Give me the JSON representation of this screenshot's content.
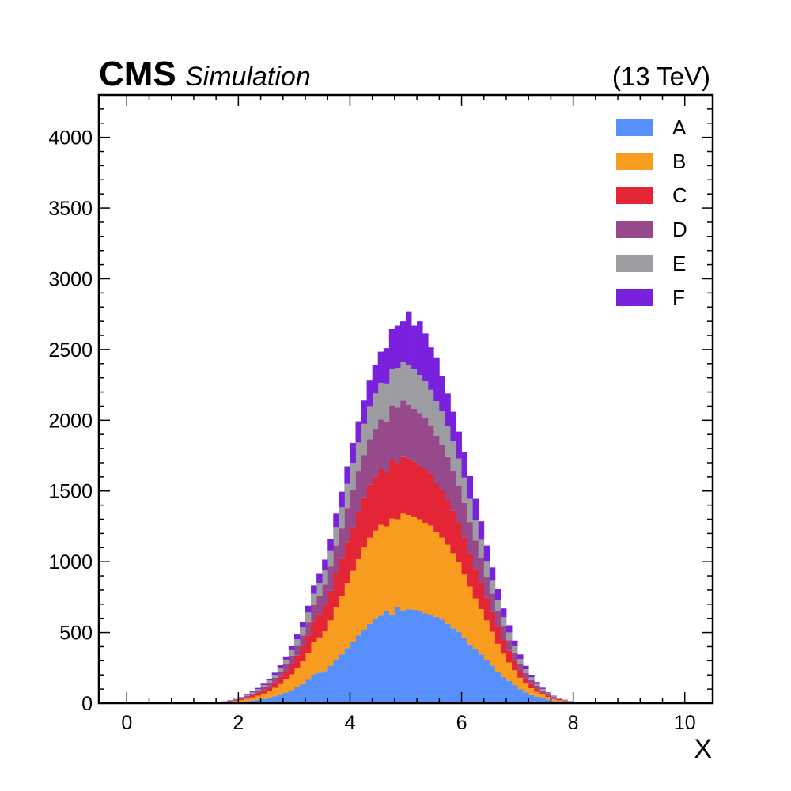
{
  "header": {
    "experiment": "CMS",
    "status": "Simulation",
    "energy": "(13 TeV)"
  },
  "chart_data": {
    "type": "bar",
    "stacked": true,
    "histogram": true,
    "xlabel": "X",
    "ylabel": "",
    "xlim": [
      -0.5,
      10.5
    ],
    "ylim": [
      0,
      4300
    ],
    "xticks": [
      0,
      2,
      4,
      6,
      8,
      10
    ],
    "yticks": [
      0,
      500,
      1000,
      1500,
      2000,
      2500,
      3000,
      3500,
      4000
    ],
    "bin_width": 0.1,
    "legend_position": "top-right",
    "bins_x_start": [
      1.6,
      1.7,
      1.8,
      1.9,
      2.0,
      2.1,
      2.2,
      2.3,
      2.4,
      2.5,
      2.6,
      2.7,
      2.8,
      2.9,
      3.0,
      3.1,
      3.2,
      3.3,
      3.4,
      3.5,
      3.6,
      3.7,
      3.8,
      3.9,
      4.0,
      4.1,
      4.2,
      4.3,
      4.4,
      4.5,
      4.6,
      4.7,
      4.8,
      4.9,
      5.0,
      5.1,
      5.2,
      5.3,
      5.4,
      5.5,
      5.6,
      5.7,
      5.8,
      5.9,
      6.0,
      6.1,
      6.2,
      6.3,
      6.4,
      6.5,
      6.6,
      6.7,
      6.8,
      6.9,
      7.0,
      7.1,
      7.2,
      7.3,
      7.4,
      7.5,
      7.6,
      7.7,
      7.8,
      7.9,
      8.0,
      8.1,
      8.2,
      8.3,
      8.4
    ],
    "series": [
      {
        "name": "A",
        "color": "#5790fc",
        "values": [
          2,
          3,
          5,
          7,
          10,
          14,
          18,
          23,
          30,
          38,
          48,
          60,
          75,
          92,
          112,
          135,
          165,
          205,
          215,
          228,
          265,
          310,
          345,
          390,
          435,
          478,
          520,
          560,
          600,
          620,
          650,
          625,
          680,
          650,
          665,
          660,
          650,
          635,
          625,
          610,
          590,
          560,
          530,
          505,
          460,
          415,
          380,
          345,
          305,
          265,
          220,
          185,
          158,
          128,
          100,
          76,
          58,
          45,
          34,
          24,
          16,
          11,
          8,
          5,
          3,
          2,
          1,
          1,
          0
        ]
      },
      {
        "name": "B",
        "color": "#f89c20",
        "values": [
          3,
          4,
          6,
          9,
          12,
          17,
          23,
          30,
          38,
          48,
          60,
          75,
          92,
          112,
          135,
          160,
          190,
          225,
          250,
          280,
          320,
          370,
          410,
          460,
          500,
          540,
          580,
          610,
          620,
          640,
          600,
          680,
          620,
          690,
          665,
          660,
          650,
          640,
          630,
          600,
          580,
          560,
          530,
          490,
          450,
          410,
          360,
          320,
          280,
          240,
          200,
          165,
          130,
          105,
          80,
          62,
          48,
          36,
          27,
          19,
          13,
          9,
          6,
          4,
          2,
          1,
          1,
          0,
          0
        ]
      },
      {
        "name": "C",
        "color": "#e42536",
        "values": [
          2,
          3,
          4,
          6,
          8,
          12,
          16,
          20,
          26,
          33,
          41,
          50,
          62,
          75,
          90,
          105,
          125,
          150,
          165,
          185,
          210,
          240,
          265,
          290,
          310,
          335,
          355,
          375,
          380,
          395,
          380,
          420,
          400,
          400,
          400,
          390,
          380,
          380,
          370,
          350,
          340,
          320,
          300,
          280,
          260,
          235,
          210,
          185,
          160,
          140,
          120,
          100,
          82,
          66,
          52,
          40,
          30,
          22,
          16,
          11,
          8,
          5,
          4,
          2,
          1,
          1,
          0,
          0,
          0
        ]
      },
      {
        "name": "D",
        "color": "#964a8b",
        "values": [
          1,
          2,
          3,
          4,
          6,
          9,
          12,
          16,
          20,
          25,
          31,
          38,
          47,
          57,
          68,
          80,
          95,
          115,
          130,
          150,
          170,
          195,
          215,
          240,
          265,
          285,
          300,
          320,
          340,
          350,
          360,
          380,
          390,
          400,
          380,
          370,
          370,
          360,
          340,
          330,
          320,
          300,
          280,
          260,
          245,
          220,
          200,
          175,
          150,
          130,
          110,
          92,
          76,
          60,
          47,
          36,
          27,
          20,
          14,
          10,
          7,
          4,
          3,
          2,
          1,
          0,
          0,
          0,
          0
        ]
      },
      {
        "name": "E",
        "color": "#9c9ca1",
        "values": [
          1,
          1,
          2,
          3,
          4,
          6,
          8,
          11,
          14,
          17,
          21,
          26,
          32,
          39,
          47,
          56,
          66,
          79,
          90,
          100,
          115,
          130,
          150,
          170,
          190,
          205,
          220,
          235,
          250,
          260,
          270,
          260,
          280,
          270,
          280,
          280,
          270,
          260,
          250,
          245,
          235,
          220,
          210,
          195,
          180,
          165,
          145,
          130,
          110,
          95,
          80,
          66,
          55,
          44,
          34,
          26,
          20,
          14,
          10,
          7,
          5,
          3,
          2,
          1,
          1,
          0,
          0,
          0,
          0
        ]
      },
      {
        "name": "F",
        "color": "#7a21dd",
        "values": [
          1,
          1,
          2,
          2,
          3,
          4,
          6,
          8,
          10,
          12,
          15,
          19,
          23,
          28,
          34,
          40,
          48,
          57,
          64,
          72,
          83,
          95,
          110,
          125,
          140,
          150,
          165,
          180,
          200,
          220,
          250,
          280,
          300,
          290,
          380,
          310,
          380,
          340,
          300,
          310,
          250,
          230,
          210,
          190,
          180,
          160,
          150,
          130,
          110,
          90,
          75,
          62,
          50,
          40,
          32,
          24,
          18,
          13,
          9,
          6,
          4,
          3,
          2,
          1,
          1,
          0,
          0,
          0,
          0
        ]
      }
    ]
  }
}
